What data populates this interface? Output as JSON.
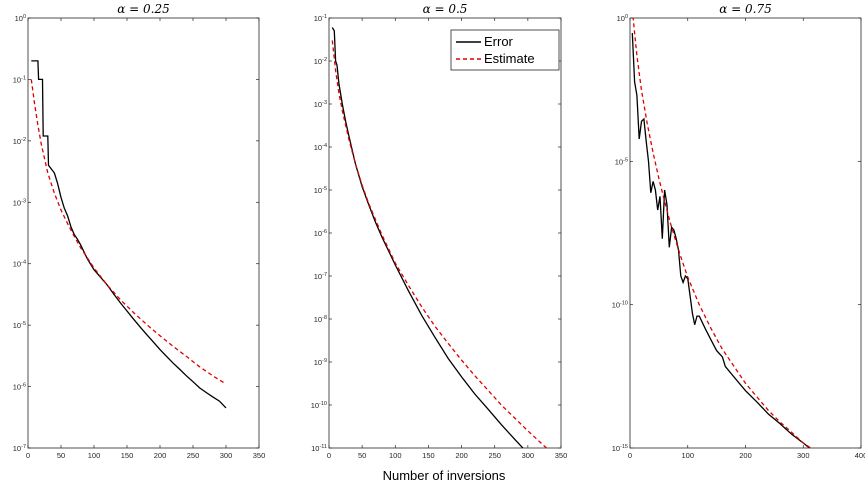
{
  "figure": {
    "xlabel": "Number of inversions"
  },
  "legend": {
    "error_label": "Error",
    "estimate_label": "Estimate"
  },
  "colors": {
    "error": "#000000",
    "estimate": "#dd0000",
    "axes": "#262626"
  },
  "chart_data": [
    {
      "type": "line",
      "title": "α = 0.25",
      "xlabel": "",
      "ylabel": "",
      "yscale": "log",
      "xlim": [
        0,
        350
      ],
      "ylim_exp": [
        -7,
        0
      ],
      "xticks": [
        "0",
        "50",
        "100",
        "150",
        "200",
        "250",
        "300",
        "350"
      ],
      "yticks": [
        "10-7",
        "10-6",
        "10-5",
        "10-4",
        "10-3",
        "10-2",
        "10-1",
        "100"
      ],
      "series": [
        {
          "name": "Error",
          "x": [
            5,
            15,
            16,
            22,
            23,
            30,
            31,
            40,
            45,
            50,
            55,
            60,
            65,
            70,
            75,
            80,
            90,
            100,
            110,
            120,
            130,
            140,
            150,
            160,
            170,
            180,
            190,
            200,
            210,
            220,
            230,
            240,
            250,
            260,
            270,
            280,
            290,
            300
          ],
          "y": [
            0.2,
            0.2,
            0.1,
            0.1,
            0.012,
            0.012,
            0.004,
            0.003,
            0.002,
            0.0012,
            0.0008,
            0.0006,
            0.0004,
            0.0003,
            0.00025,
            0.0002,
            0.00012,
            8e-05,
            6e-05,
            4.5e-05,
            3.2e-05,
            2.3e-05,
            1.7e-05,
            1.25e-05,
            9.3e-06,
            7e-06,
            5.3e-06,
            4e-06,
            3.1e-06,
            2.4e-06,
            1.9e-06,
            1.5e-06,
            1.2e-06,
            9.5e-07,
            8e-07,
            6.8e-07,
            5.8e-07,
            4.5e-07
          ]
        },
        {
          "name": "Estimate",
          "x": [
            5,
            10,
            15,
            20,
            30,
            40,
            50,
            60,
            70,
            80,
            100,
            120,
            140,
            160,
            180,
            200,
            220,
            240,
            260,
            280,
            300
          ],
          "y": [
            0.1,
            0.04,
            0.018,
            0.009,
            0.003,
            0.0014,
            0.00075,
            0.00045,
            0.00028,
            0.00018,
            8.5e-05,
            4.5e-05,
            2.6e-05,
            1.6e-05,
            1.02e-05,
            6.7e-06,
            4.5e-06,
            3.1e-06,
            2.1e-06,
            1.5e-06,
            1.1e-06
          ]
        }
      ]
    },
    {
      "type": "line",
      "title": "α = 0.5",
      "xlabel": "Number of inversions",
      "ylabel": "",
      "yscale": "log",
      "xlim": [
        0,
        350
      ],
      "ylim_exp": [
        -11,
        -1
      ],
      "xticks": [
        "0",
        "50",
        "100",
        "150",
        "200",
        "250",
        "300",
        "350"
      ],
      "yticks": [
        "10-11",
        "10-10",
        "10-9",
        "10-8",
        "10-7",
        "10-6",
        "10-5",
        "10-4",
        "10-3",
        "10-2",
        "10-1"
      ],
      "series": [
        {
          "name": "Error",
          "x": [
            5,
            8,
            10,
            12,
            15,
            20,
            25,
            30,
            40,
            50,
            60,
            70,
            80,
            90,
            100,
            120,
            140,
            160,
            180,
            200,
            220,
            240,
            260,
            280,
            300,
            320,
            333
          ],
          "y": [
            0.06,
            0.05,
            0.01,
            0.008,
            0.003,
            0.001,
            0.0004,
            0.00018,
            4e-05,
            1.2e-05,
            4.5e-06,
            1.8e-06,
            8e-07,
            3.8e-07,
            1.8e-07,
            4.5e-08,
            1.2e-08,
            3.7e-09,
            1.2e-09,
            4.5e-10,
            1.8e-10,
            8e-11,
            3.5e-11,
            1.6e-11,
            7.5e-12,
            3.7e-12,
            2.5e-12
          ]
        },
        {
          "name": "Estimate",
          "x": [
            5,
            10,
            15,
            20,
            30,
            40,
            50,
            60,
            80,
            100,
            120,
            140,
            160,
            180,
            200,
            220,
            240,
            260,
            280,
            300,
            320,
            333
          ],
          "y": [
            0.03,
            0.006,
            0.0018,
            0.0007,
            0.00015,
            4e-05,
            1.3e-05,
            4.8e-06,
            9e-07,
            2e-07,
            6e-08,
            1.9e-08,
            6.7e-09,
            2.7e-09,
            1.1e-09,
            4.8e-10,
            2.2e-10,
            1e-10,
            5e-11,
            2.5e-11,
            1.3e-11,
            8.5e-12
          ]
        }
      ]
    },
    {
      "type": "line",
      "title": "α = 0.75",
      "xlabel": "",
      "ylabel": "",
      "yscale": "log",
      "xlim": [
        0,
        400
      ],
      "ylim_exp": [
        -15,
        0
      ],
      "xticks": [
        "0",
        "100",
        "200",
        "300",
        "400"
      ],
      "yticks": [
        "10-15",
        "10-10",
        "10-5",
        "100"
      ],
      "series": [
        {
          "name": "Error",
          "x": [
            4,
            8,
            12,
            16,
            20,
            24,
            28,
            32,
            36,
            40,
            44,
            48,
            52,
            56,
            60,
            64,
            68,
            72,
            76,
            80,
            84,
            88,
            92,
            96,
            100,
            104,
            108,
            112,
            116,
            120,
            130,
            140,
            150,
            160,
            165,
            180,
            200,
            220,
            240,
            260,
            280,
            300,
            320,
            340,
            355
          ],
          "y": [
            0.3,
            0.006,
            0.002,
            6e-05,
            0.00025,
            0.0003,
            5e-05,
            1e-05,
            8e-07,
            2e-06,
            1e-06,
            2e-07,
            6e-07,
            2e-08,
            1e-06,
            3e-07,
            1e-08,
            5e-08,
            4e-08,
            2e-08,
            8e-09,
            1e-09,
            6e-10,
            1e-09,
            8e-10,
            2e-10,
            5e-11,
            2e-11,
            4e-11,
            4e-11,
            1.5e-11,
            6e-12,
            2.5e-12,
            1.5e-12,
            7e-13,
            3e-13,
            1e-13,
            4e-14,
            1.5e-14,
            7e-15,
            3e-15,
            1.5e-15,
            7e-16,
            3.5e-16,
            2e-16
          ]
        },
        {
          "name": "Estimate",
          "x": [
            4,
            8,
            12,
            16,
            20,
            30,
            40,
            50,
            60,
            70,
            80,
            90,
            100,
            120,
            140,
            160,
            180,
            200,
            220,
            240,
            260,
            280,
            300,
            320,
            340,
            355
          ],
          "y": [
            2,
            0.3,
            0.05,
            0.012,
            0.003,
            0.0002,
            2e-05,
            2.5e-06,
            4e-07,
            7e-08,
            1.5e-08,
            3.5e-09,
            9e-10,
            1e-10,
            1.5e-11,
            2.8e-12,
            7e-13,
            1.8e-13,
            6e-14,
            2e-14,
            8e-15,
            3.5e-15,
            1.5e-15,
            8e-16,
            4e-16,
            2.5e-16
          ]
        }
      ]
    }
  ]
}
